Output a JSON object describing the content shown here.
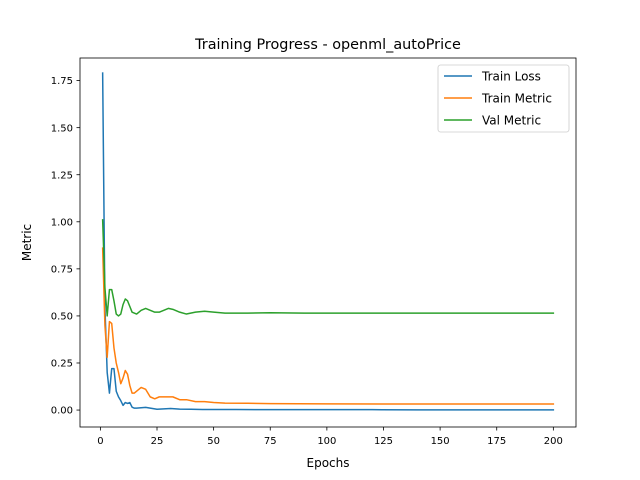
{
  "chart_data": {
    "type": "line",
    "title": "Training Progress - openml_autoPrice",
    "xlabel": "Epochs",
    "ylabel": "Metric",
    "xlim": [
      -9,
      210
    ],
    "ylim": [
      -0.09,
      1.87
    ],
    "xticks": [
      0,
      25,
      50,
      75,
      100,
      125,
      150,
      175,
      200
    ],
    "yticks": [
      0.0,
      0.25,
      0.5,
      0.75,
      1.0,
      1.25,
      1.5,
      1.75
    ],
    "ytick_labels": [
      "0.00",
      "0.25",
      "0.50",
      "0.75",
      "1.00",
      "1.25",
      "1.50",
      "1.75"
    ],
    "grid": false,
    "legend_position": "top-right",
    "series": [
      {
        "name": "Train Loss",
        "color": "#1f77b4",
        "points": [
          [
            1,
            1.79
          ],
          [
            2,
            0.55
          ],
          [
            3,
            0.2
          ],
          [
            4,
            0.09
          ],
          [
            5,
            0.22
          ],
          [
            6,
            0.22
          ],
          [
            7,
            0.1
          ],
          [
            8,
            0.07
          ],
          [
            9,
            0.05
          ],
          [
            10,
            0.025
          ],
          [
            11,
            0.04
          ],
          [
            12,
            0.035
          ],
          [
            13,
            0.04
          ],
          [
            14,
            0.015
          ],
          [
            15,
            0.01
          ],
          [
            16,
            0.01
          ],
          [
            18,
            0.012
          ],
          [
            20,
            0.014
          ],
          [
            22,
            0.01
          ],
          [
            25,
            0.004
          ],
          [
            28,
            0.006
          ],
          [
            31,
            0.008
          ],
          [
            35,
            0.005
          ],
          [
            40,
            0.004
          ],
          [
            45,
            0.003
          ],
          [
            50,
            0.003
          ],
          [
            60,
            0.003
          ],
          [
            70,
            0.002
          ],
          [
            80,
            0.002
          ],
          [
            100,
            0.002
          ],
          [
            120,
            0.002
          ],
          [
            140,
            0.001
          ],
          [
            160,
            0.001
          ],
          [
            180,
            0.001
          ],
          [
            200,
            0.001
          ]
        ]
      },
      {
        "name": "Train Metric",
        "color": "#ff7f0e",
        "points": [
          [
            1,
            0.86
          ],
          [
            2,
            0.45
          ],
          [
            3,
            0.28
          ],
          [
            4,
            0.47
          ],
          [
            5,
            0.46
          ],
          [
            6,
            0.33
          ],
          [
            7,
            0.25
          ],
          [
            8,
            0.2
          ],
          [
            9,
            0.14
          ],
          [
            10,
            0.17
          ],
          [
            11,
            0.21
          ],
          [
            12,
            0.19
          ],
          [
            13,
            0.13
          ],
          [
            14,
            0.09
          ],
          [
            15,
            0.09
          ],
          [
            16,
            0.1
          ],
          [
            18,
            0.12
          ],
          [
            20,
            0.11
          ],
          [
            22,
            0.07
          ],
          [
            24,
            0.06
          ],
          [
            26,
            0.07
          ],
          [
            30,
            0.07
          ],
          [
            32,
            0.07
          ],
          [
            35,
            0.055
          ],
          [
            38,
            0.055
          ],
          [
            42,
            0.045
          ],
          [
            46,
            0.045
          ],
          [
            50,
            0.04
          ],
          [
            55,
            0.037
          ],
          [
            65,
            0.036
          ],
          [
            75,
            0.034
          ],
          [
            100,
            0.033
          ],
          [
            125,
            0.032
          ],
          [
            150,
            0.032
          ],
          [
            175,
            0.032
          ],
          [
            200,
            0.032
          ]
        ]
      },
      {
        "name": "Val Metric",
        "color": "#2ca02c",
        "points": [
          [
            1,
            1.01
          ],
          [
            2,
            0.65
          ],
          [
            3,
            0.5
          ],
          [
            4,
            0.64
          ],
          [
            5,
            0.64
          ],
          [
            6,
            0.58
          ],
          [
            7,
            0.51
          ],
          [
            8,
            0.5
          ],
          [
            9,
            0.51
          ],
          [
            10,
            0.56
          ],
          [
            11,
            0.59
          ],
          [
            12,
            0.58
          ],
          [
            13,
            0.55
          ],
          [
            14,
            0.52
          ],
          [
            16,
            0.51
          ],
          [
            18,
            0.53
          ],
          [
            20,
            0.54
          ],
          [
            22,
            0.53
          ],
          [
            24,
            0.52
          ],
          [
            26,
            0.52
          ],
          [
            28,
            0.53
          ],
          [
            30,
            0.54
          ],
          [
            32,
            0.535
          ],
          [
            35,
            0.52
          ],
          [
            38,
            0.51
          ],
          [
            42,
            0.52
          ],
          [
            46,
            0.525
          ],
          [
            50,
            0.52
          ],
          [
            55,
            0.515
          ],
          [
            65,
            0.515
          ],
          [
            75,
            0.517
          ],
          [
            90,
            0.515
          ],
          [
            110,
            0.515
          ],
          [
            130,
            0.515
          ],
          [
            150,
            0.515
          ],
          [
            175,
            0.515
          ],
          [
            200,
            0.515
          ]
        ]
      }
    ]
  }
}
